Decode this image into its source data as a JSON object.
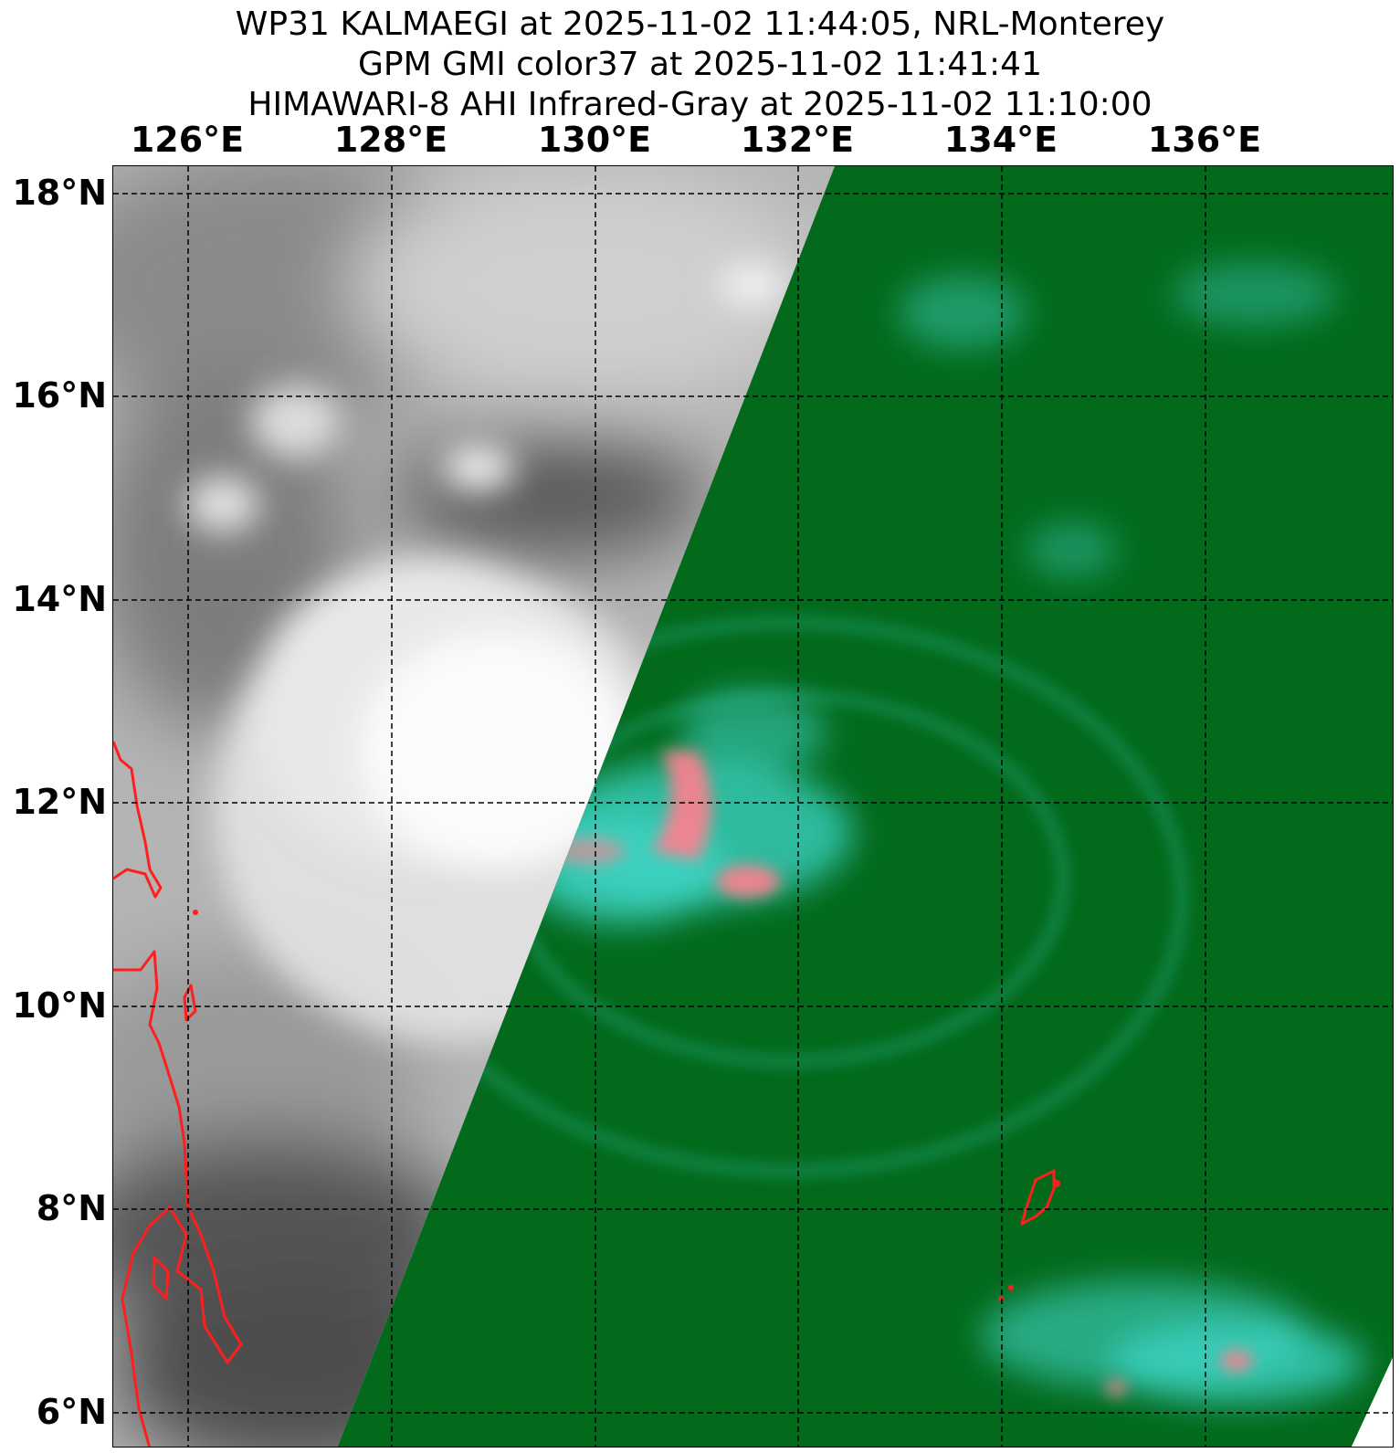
{
  "title": {
    "line1": "WP31 KALMAEGI at 2025-11-02 11:44:05, NRL-Monterey",
    "line2": "GPM GMI color37 at 2025-11-02 11:41:41",
    "line3": "HIMAWARI-8 AHI Infrared-Gray at 2025-11-02 11:10:00"
  },
  "map": {
    "lon_labels": [
      "126°E",
      "128°E",
      "130°E",
      "132°E",
      "134°E",
      "136°E"
    ],
    "lat_labels": [
      "18°N",
      "16°N",
      "14°N",
      "12°N",
      "10°N",
      "8°N",
      "6°N"
    ],
    "gridlines": "dashed",
    "layers": [
      "HIMAWARI-8 AHI Infrared-Gray",
      "GPM GMI color37"
    ],
    "colors": {
      "microwave_background": "#036a1c",
      "microwave_cyan": "#3fd6c8",
      "microwave_pink": "#ff7f8f",
      "coastline": "#ff1e1e",
      "grid": "#000000"
    }
  }
}
